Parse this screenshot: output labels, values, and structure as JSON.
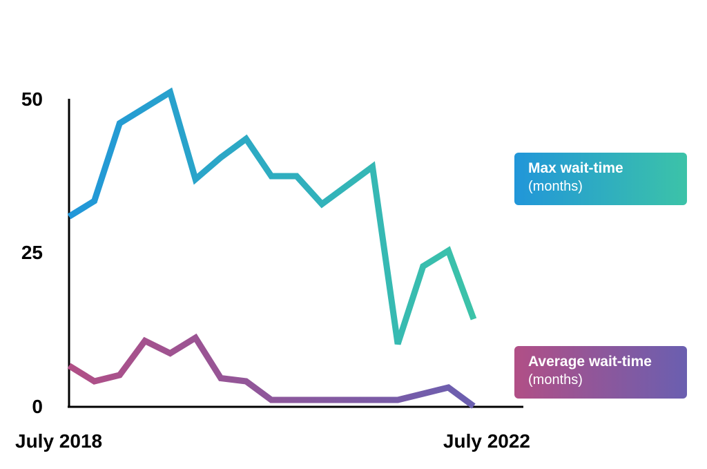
{
  "chart_data": {
    "type": "line",
    "x_labels_shown": [
      "July 2018",
      "July 2022"
    ],
    "y_ticks": [
      0,
      25,
      50
    ],
    "ylim": [
      0,
      50
    ],
    "grid": false,
    "legend_placement": "right",
    "series": [
      {
        "name": "Max wait-time",
        "unit": "(months)",
        "values": [
          30.5,
          33,
          45.5,
          48,
          50.5,
          36.5,
          40,
          43,
          37,
          37,
          32.5,
          35.5,
          38.5,
          10,
          22.5,
          25,
          14
        ],
        "color_start": "#2196d9",
        "color_end": "#3cc3a8"
      },
      {
        "name": "Average wait-time",
        "unit": "(months)",
        "values": [
          6.5,
          4,
          5,
          10.5,
          8.5,
          11,
          4.5,
          4,
          1,
          1,
          1,
          1,
          1,
          1,
          2,
          3,
          0
        ],
        "color_start": "#b14f86",
        "color_end": "#6a5fb0"
      }
    ]
  }
}
